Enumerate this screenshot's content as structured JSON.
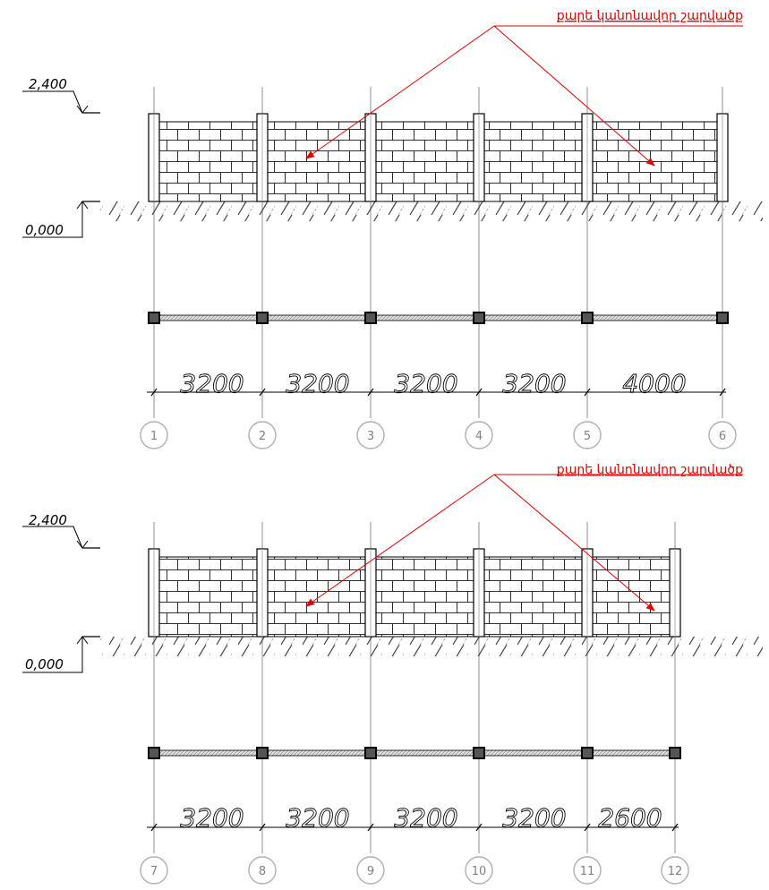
{
  "colors": {
    "line": "#000000",
    "axis": "#b0b0b0",
    "leader": "#e00000",
    "post_fill": "#555555",
    "ground_hatch": "#404040"
  },
  "sections": [
    {
      "note": "քարե կանոնավոր շարվածք",
      "level_top": "2,400",
      "level_ground": "0,000",
      "spans": [
        "3200",
        "3200",
        "3200",
        "3200",
        "4000"
      ],
      "axes": [
        "1",
        "2",
        "3",
        "4",
        "5",
        "6"
      ]
    },
    {
      "note": "քարե կանոնավոր շարվածք",
      "level_top": "2,400",
      "level_ground": "0,000",
      "spans": [
        "3200",
        "3200",
        "3200",
        "3200",
        "2600"
      ],
      "axes": [
        "7",
        "8",
        "9",
        "10",
        "11",
        "12"
      ]
    }
  ]
}
